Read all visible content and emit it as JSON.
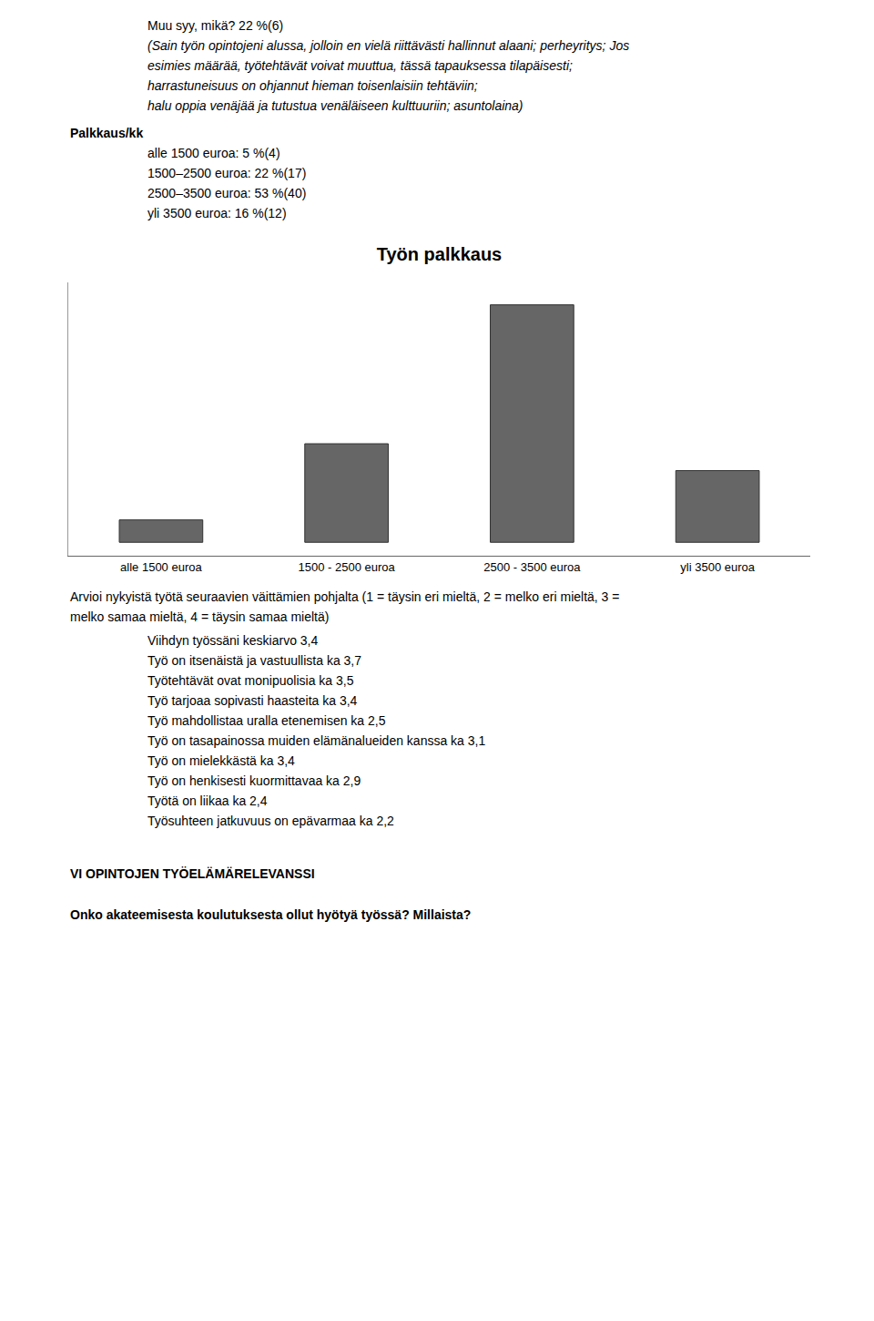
{
  "chart_data": {
    "type": "bar",
    "title": "Työn palkkaus",
    "categories": [
      "alle 1500 euroa",
      "1500 - 2500 euroa",
      "2500 - 3500 euroa",
      "yli 3500 euroa"
    ],
    "values": [
      5,
      22,
      53,
      16
    ],
    "color": "#666666",
    "ylim": [
      -3,
      58
    ],
    "grid": false,
    "tick_labels": "x",
    "annotations": [
      "Muu syy, mikä? 22 %(6)",
      "(Sain työn opintojeni alussa, jolloin en vielä riittävästi hallinnut alaani; perheyritys; Jos",
      "esimies määrää, työtehtävät voivat muuttua, tässä tapauksessa tilapäisesti;",
      "harrastuneisuus on ohjannut hieman toisenlaisiin tehtäviin;",
      "halu oppia venäjää ja tutustua venäläiseen kulttuuriin; asuntolaina)",
      "Palkkaus/kk",
      "alle 1500 euroa: 5 %(4)",
      "1500–2500 euroa: 22 %(17)",
      "2500–3500 euroa: 53 %(40)",
      "yli 3500 euroa: 16 %(12)",
      "Arvioi nykyistä työtä seuraavien väittämien pohjalta (1 = täysin eri mieltä, 2 = melko eri mieltä, 3 =",
      "melko samaa mieltä, 4 = täysin samaa mieltä)",
      "Viihdyn työssäni keskiarvo 3,4",
      "Työ on itsenäistä ja vastuullista ka 3,7",
      "Työtehtävät ovat monipuolisia ka 3,5",
      "Työ tarjoaa sopivasti haasteita ka 3,4",
      "Työ mahdollistaa uralla etenemisen ka 2,5",
      "Työ on tasapainossa muiden elämänalueiden kanssa ka 3,1",
      "Työ on mielekkästä ka 3,4",
      "Työ on henkisesti kuormittavaa ka 2,9",
      "Työtä on liikaa ka 2,4",
      "Työsuhteen jatkuvuus on epävarmaa ka 2,2",
      "VI OPINTOJEN TYÖELÄMÄRELEVANSSI",
      "Onko akateemisesta koulutuksesta ollut hyötyä työssä? Millaista?"
    ]
  }
}
